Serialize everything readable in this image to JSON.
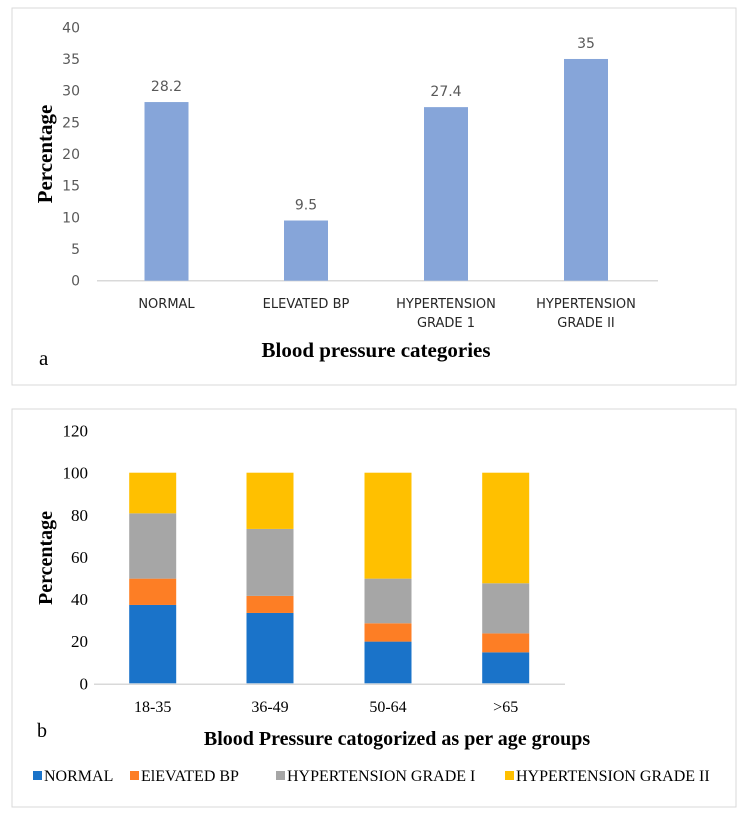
{
  "chart_data": [
    {
      "type": "bar",
      "panel_label": "a",
      "title": "",
      "xlabel": "Blood pressure categories",
      "ylabel": "Percentage",
      "ylim": [
        0,
        40
      ],
      "yticks": [
        0,
        5,
        10,
        15,
        20,
        25,
        30,
        35,
        40
      ],
      "categories": [
        [
          "NORMAL"
        ],
        [
          "ELEVATED BP"
        ],
        [
          "HYPERTENSION",
          "GRADE 1"
        ],
        [
          "HYPERTENSION",
          "GRADE II"
        ]
      ],
      "values": [
        28.2,
        9.5,
        27.4,
        35
      ],
      "data_labels": [
        "28.2",
        "9.5",
        "27.4",
        "35"
      ],
      "color": "#86a5d9",
      "grid": false
    },
    {
      "type": "bar",
      "stacked": true,
      "panel_label": "b",
      "title": "",
      "xlabel": "Blood Pressure catogorized as per age groups",
      "ylabel": "Percentage",
      "ylim": [
        0,
        120
      ],
      "yticks": [
        0,
        20,
        40,
        60,
        80,
        100,
        120
      ],
      "categories": [
        "18-35",
        "36-49",
        "50-64",
        ">65"
      ],
      "legend_position": "bottom",
      "series": [
        {
          "name": "NORMAL",
          "color": "#1a73c9",
          "values": [
            37.2,
            33.4,
            19.8,
            14.7
          ]
        },
        {
          "name": "ElEVATED BP",
          "color": "#fd7e25",
          "values": [
            12.5,
            8.1,
            8.7,
            9.0
          ]
        },
        {
          "name": "HYPERTENSION GRADE I",
          "color": "#a6a6a6",
          "values": [
            31.0,
            31.8,
            21.2,
            23.8
          ]
        },
        {
          "name": "HYPERTENSION GRADE II",
          "color": "#ffc000",
          "values": [
            19.3,
            26.7,
            50.3,
            52.5
          ]
        }
      ],
      "grid": false
    }
  ]
}
